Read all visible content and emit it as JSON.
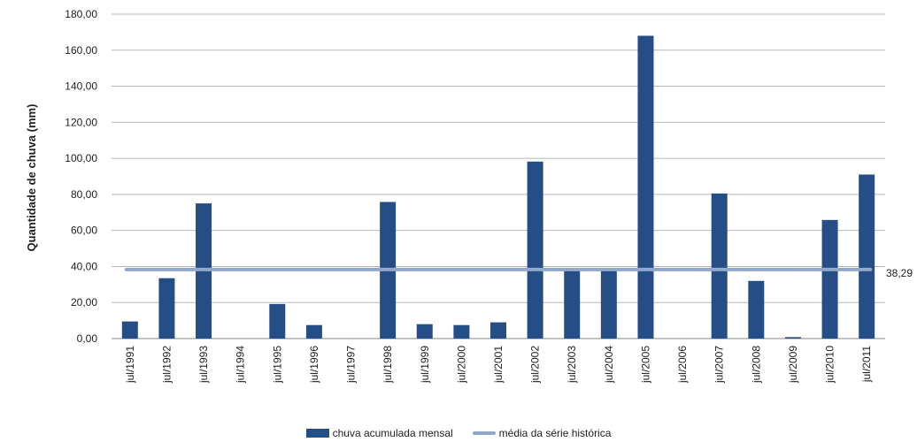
{
  "chart_data": {
    "type": "bar",
    "title": "",
    "xlabel": "",
    "ylabel": "Quantidade de chuva (mm)",
    "ylim": [
      0,
      180
    ],
    "yticks": [
      "0,00",
      "20,00",
      "40,00",
      "60,00",
      "80,00",
      "100,00",
      "120,00",
      "140,00",
      "160,00",
      "180,00"
    ],
    "grid": "horizontal",
    "legend_position": "bottom",
    "categories": [
      "jul/1991",
      "jul/1992",
      "jul/1993",
      "jul/1994",
      "jul/1995",
      "jul/1996",
      "jul/1997",
      "jul/1998",
      "jul/1999",
      "jul/2000",
      "jul/2001",
      "jul/2002",
      "jul/2003",
      "jul/2004",
      "jul/2005",
      "jul/2006",
      "jul/2007",
      "jul/2008",
      "jul/2009",
      "jul/2010",
      "jul/2011"
    ],
    "series": [
      {
        "name": "chuva acumulada mensal",
        "type": "bar",
        "color": "#264E86",
        "values": [
          9.5,
          33.5,
          75.0,
          0,
          19.2,
          7.5,
          0,
          75.8,
          8.0,
          7.5,
          9.0,
          98.2,
          37.5,
          37.5,
          168.0,
          0,
          80.5,
          32.0,
          0.8,
          65.8,
          91.0
        ]
      },
      {
        "name": "média da série histórica",
        "type": "line",
        "color": "#8FA8CC",
        "value": 38.29,
        "value_label": "38,29"
      }
    ]
  }
}
